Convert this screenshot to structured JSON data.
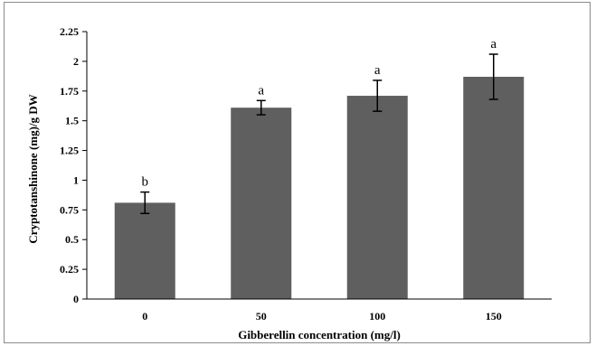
{
  "chart_data": {
    "type": "bar",
    "xlabel": "Gibberellin  concentration  (mg/l)",
    "ylabel": "Cryptotanshinone  (mg)/g DW",
    "categories": [
      "0",
      "50",
      "100",
      "150"
    ],
    "values": [
      0.81,
      1.61,
      1.71,
      1.87
    ],
    "errors": [
      0.09,
      0.06,
      0.13,
      0.19
    ],
    "significance_labels": [
      "b",
      "a",
      "a",
      "a"
    ],
    "ylim": [
      0,
      2.25
    ],
    "yticks": [
      "0",
      "0.25",
      "0.5",
      "0.75",
      "1",
      "1.25",
      "1.5",
      "1.75",
      "2",
      "2.25"
    ],
    "bar_color": "#5f5f5f",
    "grid": false,
    "legend": "none"
  }
}
